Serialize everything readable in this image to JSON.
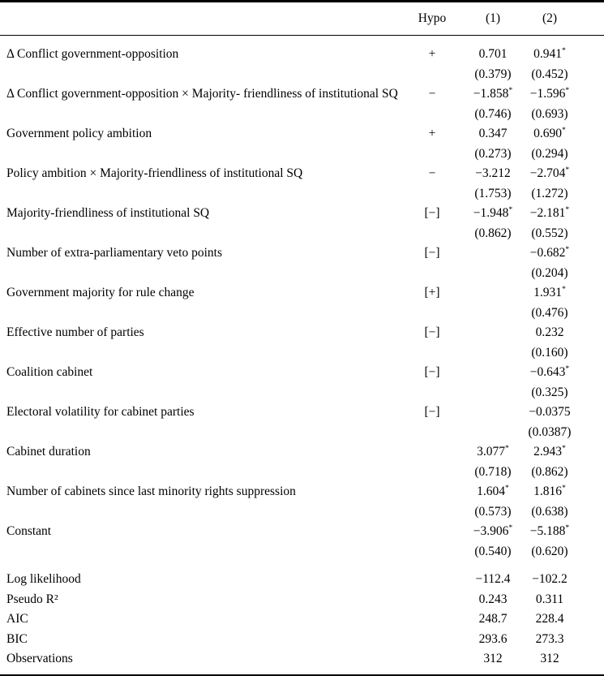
{
  "table": {
    "header": {
      "variable": "",
      "hypo": "Hypo",
      "m1": "(1)",
      "m2": "(2)"
    },
    "rows": [
      {
        "variable": "Δ Conflict government-opposition",
        "hypo": "+",
        "m1": "0.701",
        "m1_se": "(0.379)",
        "m2": "0.941*",
        "m2_se": "(0.452)"
      },
      {
        "variable": "Δ Conflict government-opposition × Majority- friendliness of institutional SQ",
        "hypo": "−",
        "m1": "−1.858*",
        "m1_se": "(0.746)",
        "m2": "−1.596*",
        "m2_se": "(0.693)"
      },
      {
        "variable": "Government policy ambition",
        "hypo": "+",
        "m1": "0.347",
        "m1_se": "(0.273)",
        "m2": "0.690*",
        "m2_se": "(0.294)"
      },
      {
        "variable": "Policy ambition × Majority-friendliness of institutional SQ",
        "hypo": "−",
        "m1": "−3.212",
        "m1_se": "(1.753)",
        "m2": "−2.704*",
        "m2_se": "(1.272)"
      },
      {
        "variable": "Majority-friendliness of institutional SQ",
        "hypo": "[−]",
        "m1": "−1.948*",
        "m1_se": "(0.862)",
        "m2": "−2.181*",
        "m2_se": "(0.552)"
      },
      {
        "variable": "Number of extra-parliamentary veto points",
        "hypo": "[−]",
        "m1": "",
        "m1_se": "",
        "m2": "−0.682*",
        "m2_se": "(0.204)"
      },
      {
        "variable": "Government majority for rule change",
        "hypo": "[+]",
        "m1": "",
        "m1_se": "",
        "m2": "1.931*",
        "m2_se": "(0.476)"
      },
      {
        "variable": "Effective number of parties",
        "hypo": "[−]",
        "m1": "",
        "m1_se": "",
        "m2": "0.232",
        "m2_se": "(0.160)"
      },
      {
        "variable": "Coalition cabinet",
        "hypo": "[−]",
        "m1": "",
        "m1_se": "",
        "m2": "−0.643*",
        "m2_se": "(0.325)"
      },
      {
        "variable": "Electoral volatility for cabinet parties",
        "hypo": "[−]",
        "m1": "",
        "m1_se": "",
        "m2": "−0.0375",
        "m2_se": "(0.0387)"
      },
      {
        "variable": "Cabinet duration",
        "hypo": "",
        "m1": "3.077*",
        "m1_se": "(0.718)",
        "m2": "2.943*",
        "m2_se": "(0.862)"
      },
      {
        "variable": "Number of cabinets since last minority rights suppression",
        "hypo": "",
        "m1": "1.604*",
        "m1_se": "(0.573)",
        "m2": "1.816*",
        "m2_se": "(0.638)"
      },
      {
        "variable": "Constant",
        "hypo": "",
        "m1": "−3.906*",
        "m1_se": "(0.540)",
        "m2": "−5.188*",
        "m2_se": "(0.620)"
      }
    ],
    "stats": [
      {
        "label": "Log likelihood",
        "m1": "−112.4",
        "m2": "−102.2"
      },
      {
        "label": "Pseudo R²",
        "m1": "0.243",
        "m2": "0.311"
      },
      {
        "label": "AIC",
        "m1": "248.7",
        "m2": "228.4"
      },
      {
        "label": "BIC",
        "m1": "293.6",
        "m2": "273.3"
      },
      {
        "label": "Observations",
        "m1": "312",
        "m2": "312"
      }
    ]
  }
}
